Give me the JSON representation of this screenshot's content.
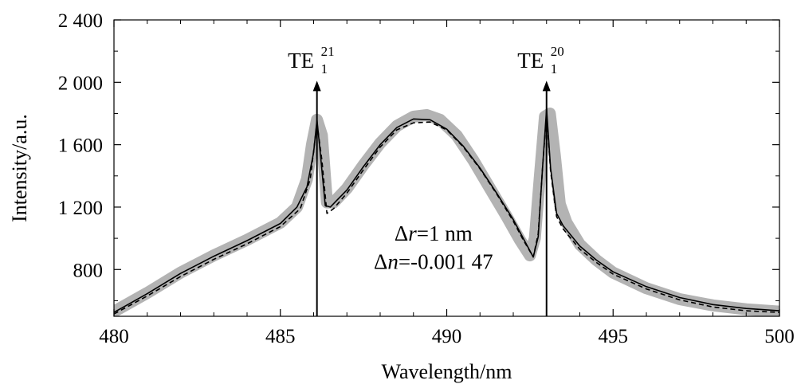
{
  "chart_data": {
    "type": "line",
    "xlabel": "Wavelength/nm",
    "ylabel": "Intensity/a.u.",
    "xlim": [
      480,
      500
    ],
    "ylim": [
      500,
      2400
    ],
    "xticks": [
      480,
      485,
      490,
      495,
      500
    ],
    "xtick_labels": [
      "480",
      "485",
      "490",
      "495",
      "500"
    ],
    "yticks": [
      800,
      1200,
      1600,
      2000,
      2400
    ],
    "ytick_labels": [
      "800",
      "1 200",
      "1 600",
      "2 000",
      "2 400"
    ],
    "grid": false,
    "series": [
      {
        "style": "thick-gray",
        "x": [
          480.0,
          481.0,
          482.0,
          483.0,
          484.0,
          485.0,
          485.5,
          485.8,
          485.95,
          486.1,
          486.25,
          486.4,
          486.6,
          487.0,
          487.5,
          488.0,
          488.5,
          489.0,
          489.4,
          489.8,
          490.3,
          490.8,
          491.3,
          491.8,
          492.2,
          492.5,
          492.65,
          492.8,
          492.95,
          493.1,
          493.25,
          493.4,
          493.6,
          494.0,
          494.5,
          495.0,
          496.0,
          497.0,
          498.0,
          499.0,
          500.0
        ],
        "y": [
          530,
          650,
          780,
          890,
          990,
          1100,
          1200,
          1380,
          1600,
          1760,
          1660,
          1230,
          1230,
          1320,
          1470,
          1610,
          1720,
          1780,
          1790,
          1760,
          1660,
          1500,
          1320,
          1140,
          990,
          890,
          1000,
          1400,
          1780,
          1800,
          1530,
          1220,
          1100,
          960,
          860,
          780,
          680,
          610,
          570,
          545,
          530
        ]
      },
      {
        "style": "solid-black",
        "x": [
          480.0,
          481.0,
          482.0,
          483.0,
          484.0,
          485.0,
          485.5,
          485.8,
          486.0,
          486.1,
          486.2,
          486.35,
          486.5,
          487.0,
          487.5,
          488.0,
          488.5,
          489.0,
          489.5,
          490.0,
          490.5,
          491.0,
          491.5,
          492.0,
          492.3,
          492.6,
          492.75,
          492.88,
          493.0,
          493.12,
          493.3,
          493.5,
          494.0,
          494.5,
          495.0,
          496.0,
          497.0,
          498.0,
          499.0,
          500.0
        ],
        "y": [
          525,
          645,
          775,
          885,
          985,
          1095,
          1200,
          1330,
          1550,
          1760,
          1550,
          1210,
          1200,
          1310,
          1460,
          1600,
          1710,
          1765,
          1760,
          1700,
          1590,
          1450,
          1290,
          1120,
          1000,
          880,
          1010,
          1450,
          1830,
          1450,
          1160,
          1080,
          950,
          860,
          785,
          690,
          620,
          575,
          550,
          535
        ]
      },
      {
        "style": "dashed-black",
        "x": [
          480.0,
          481.0,
          482.0,
          483.0,
          484.0,
          485.0,
          485.6,
          485.9,
          486.1,
          486.25,
          486.4,
          486.6,
          487.0,
          487.5,
          488.0,
          488.5,
          489.0,
          489.5,
          490.0,
          490.5,
          491.0,
          491.5,
          492.0,
          492.3,
          492.6,
          492.75,
          492.88,
          493.0,
          493.12,
          493.3,
          493.5,
          494.0,
          494.5,
          495.0,
          496.0,
          497.0,
          498.0,
          499.0,
          500.0
        ],
        "y": [
          515,
          630,
          755,
          865,
          965,
          1075,
          1190,
          1380,
          1740,
          1500,
          1160,
          1190,
          1290,
          1440,
          1585,
          1695,
          1740,
          1745,
          1695,
          1585,
          1445,
          1285,
          1110,
          990,
          880,
          1030,
          1450,
          1800,
          1430,
          1140,
          1060,
          930,
          845,
          770,
          675,
          605,
          560,
          535,
          525
        ]
      }
    ],
    "markers": [
      {
        "x": 486.1,
        "y_top": 2000,
        "label": "TE",
        "sub": "1",
        "sup": "21"
      },
      {
        "x": 493.0,
        "y_top": 2000,
        "label": "TE",
        "sub": "1",
        "sup": "20"
      }
    ],
    "annotation": {
      "line1_symbol": "Δ",
      "line1_var": "r",
      "line1_rest": "=1 nm",
      "line2_symbol": "Δ",
      "line2_var": "n",
      "line2_rest": "=-0.001 47",
      "x": 489.6,
      "y1": 1030,
      "y2": 850
    }
  }
}
